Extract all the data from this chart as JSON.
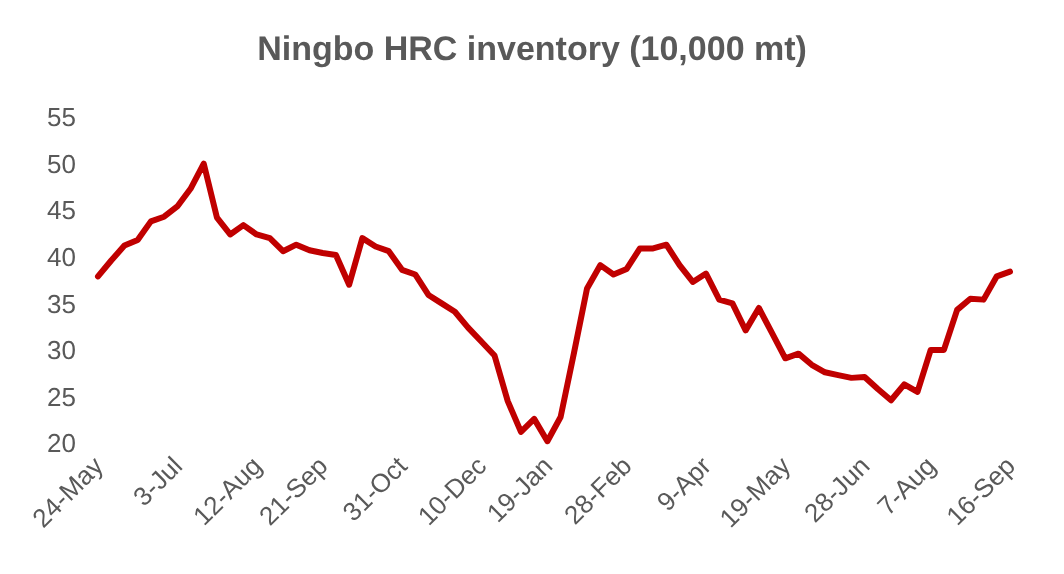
{
  "chart_data": {
    "type": "line",
    "title": "Ningbo HRC inventory (10,000 mt)",
    "categories": [
      "24-May",
      null,
      null,
      null,
      null,
      null,
      "3-Jul",
      null,
      null,
      null,
      null,
      null,
      "12-Aug",
      null,
      null,
      null,
      null,
      "21-Sep",
      null,
      null,
      null,
      null,
      null,
      "31-Oct",
      null,
      null,
      null,
      null,
      null,
      "10-Dec",
      null,
      null,
      null,
      null,
      "19-Jan",
      null,
      null,
      null,
      null,
      null,
      "28-Feb",
      null,
      null,
      null,
      null,
      null,
      "9-Apr",
      null,
      null,
      null,
      null,
      null,
      "19-May",
      null,
      null,
      null,
      null,
      null,
      "28-Jun",
      null,
      null,
      null,
      null,
      "7-Aug",
      null,
      null,
      null,
      null,
      null,
      "16-Sep"
    ],
    "series": [
      {
        "color": "#c00000",
        "values": [
          38.0,
          39.7,
          41.3,
          41.9,
          43.9,
          44.4,
          45.5,
          47.4,
          50.1,
          44.3,
          42.5,
          43.5,
          42.5,
          42.1,
          40.7,
          41.4,
          40.8,
          40.5,
          40.3,
          37.1,
          42.1,
          41.2,
          40.7,
          38.7,
          38.2,
          36.0,
          35.1,
          34.2,
          32.5,
          31.0,
          29.5,
          24.6,
          21.3,
          22.7,
          20.3,
          22.9,
          29.7,
          36.7,
          39.2,
          38.2,
          38.8,
          41.0,
          41.0,
          41.4,
          39.2,
          37.4,
          38.3,
          35.5,
          35.1,
          32.2,
          34.6,
          31.9,
          29.2,
          29.7,
          28.5,
          27.7,
          27.4,
          27.1,
          27.2,
          25.9,
          24.7,
          26.4,
          25.6,
          30.1,
          30.1,
          34.4,
          35.6,
          35.5,
          38.0,
          38.5
        ]
      }
    ],
    "ylim": [
      20,
      55
    ],
    "yticks": [
      20,
      25,
      30,
      35,
      40,
      45,
      50,
      55
    ],
    "grid": false,
    "line_style": "solid"
  }
}
